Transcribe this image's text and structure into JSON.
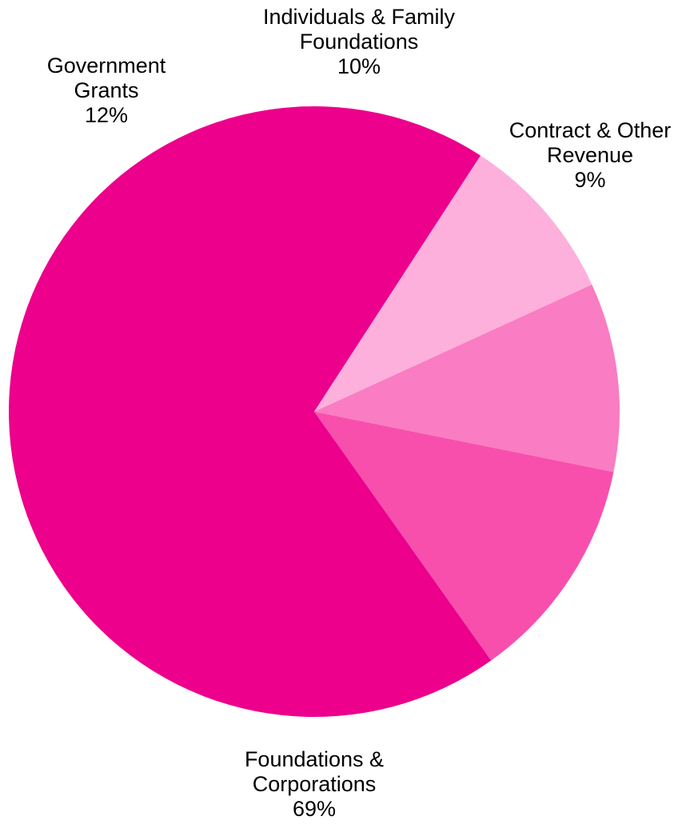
{
  "chart_data": {
    "type": "pie",
    "title": "",
    "slices": [
      {
        "label_lines": [
          "Foundations &",
          "Corporations"
        ],
        "percent_label": "69%",
        "value": 69,
        "color": "#EC008C"
      },
      {
        "label_lines": [
          "Government",
          "Grants"
        ],
        "percent_label": "12%",
        "value": 12,
        "color": "#F84FAD"
      },
      {
        "label_lines": [
          "Individuals & Family",
          "Foundations"
        ],
        "percent_label": "10%",
        "value": 10,
        "color": "#FA7CC2"
      },
      {
        "label_lines": [
          "Contract & Other",
          "Revenue"
        ],
        "percent_label": "9%",
        "value": 9,
        "color": "#FDB0DC"
      }
    ],
    "legend": "none",
    "start_angle_deg": 57,
    "direction": "counterclockwise"
  }
}
